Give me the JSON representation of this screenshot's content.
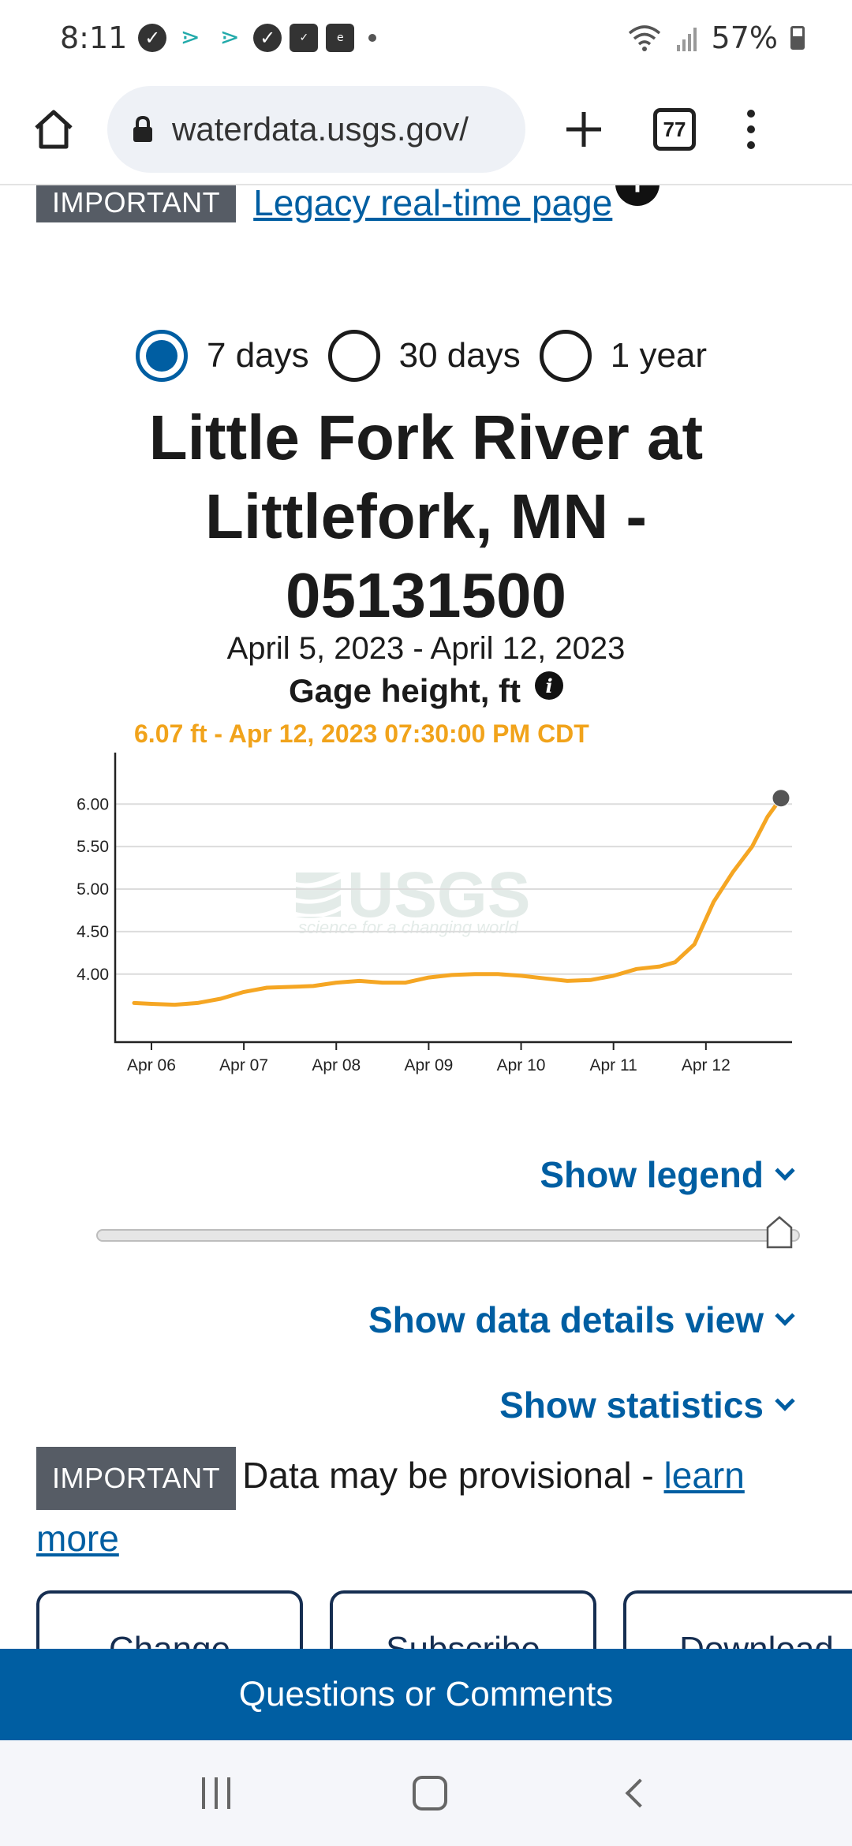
{
  "status_bar": {
    "time": "8:11",
    "battery": "57%"
  },
  "browser": {
    "url": "waterdata.usgs.gov/",
    "tab_count": "77"
  },
  "notice_top": {
    "tag": "IMPORTANT",
    "link": "Legacy real-time page "
  },
  "period_options": [
    {
      "label": "7 days",
      "selected": true
    },
    {
      "label": "30 days",
      "selected": false
    },
    {
      "label": "1 year",
      "selected": false
    }
  ],
  "site": {
    "title_line1": "Little Fork River at",
    "title_line2": "Littlefork, MN -",
    "title_line3": "05131500",
    "date_range": "April 5, 2023 - April 12, 2023",
    "parameter": "Gage height, ft",
    "current": "6.07 ft - Apr 12, 2023 07:30:00 PM CDT"
  },
  "chart_data": {
    "type": "line",
    "title": "",
    "xlabel": "",
    "ylabel": "",
    "x_tick_labels": [
      "Apr 06",
      "Apr 07",
      "Apr 08",
      "Apr 09",
      "Apr 10",
      "Apr 11",
      "Apr 12"
    ],
    "y_tick_labels": [
      "6.00",
      "5.50",
      "5.00",
      "4.50",
      "4.00"
    ],
    "y_ticks": [
      6.0,
      5.5,
      5.0,
      4.5,
      4.0
    ],
    "ylim": [
      3.2,
      6.55
    ],
    "x_range": [
      "2023-04-05T19:30",
      "2023-04-12T19:30"
    ],
    "grid": true,
    "color": "#f5a623",
    "watermark": {
      "name": "USGS",
      "tagline": "science for a changing world"
    },
    "series": [
      {
        "points": [
          [
            "2023-04-05T19:30",
            3.66
          ],
          [
            "2023-04-06T00:00",
            3.65
          ],
          [
            "2023-04-06T06:00",
            3.64
          ],
          [
            "2023-04-06T12:00",
            3.66
          ],
          [
            "2023-04-06T18:00",
            3.71
          ],
          [
            "2023-04-07T00:00",
            3.79
          ],
          [
            "2023-04-07T06:00",
            3.84
          ],
          [
            "2023-04-07T12:00",
            3.85
          ],
          [
            "2023-04-07T18:00",
            3.86
          ],
          [
            "2023-04-08T00:00",
            3.9
          ],
          [
            "2023-04-08T06:00",
            3.92
          ],
          [
            "2023-04-08T12:00",
            3.9
          ],
          [
            "2023-04-08T18:00",
            3.9
          ],
          [
            "2023-04-09T00:00",
            3.96
          ],
          [
            "2023-04-09T06:00",
            3.99
          ],
          [
            "2023-04-09T12:00",
            4.0
          ],
          [
            "2023-04-09T18:00",
            4.0
          ],
          [
            "2023-04-10T00:00",
            3.98
          ],
          [
            "2023-04-10T06:00",
            3.95
          ],
          [
            "2023-04-10T12:00",
            3.92
          ],
          [
            "2023-04-10T18:00",
            3.93
          ],
          [
            "2023-04-11T00:00",
            3.98
          ],
          [
            "2023-04-11T06:00",
            4.06
          ],
          [
            "2023-04-11T12:00",
            4.09
          ],
          [
            "2023-04-11T16:00",
            4.14
          ],
          [
            "2023-04-11T21:00",
            4.35
          ],
          [
            "2023-04-12T02:00",
            4.85
          ],
          [
            "2023-04-12T07:00",
            5.2
          ],
          [
            "2023-04-12T12:00",
            5.5
          ],
          [
            "2023-04-12T16:00",
            5.85
          ],
          [
            "2023-04-12T19:30",
            6.07
          ]
        ]
      }
    ]
  },
  "controls": {
    "show_legend": "Show legend",
    "show_data_details": "Show data details view",
    "show_statistics": "Show statistics"
  },
  "notice_bottom": {
    "tag": "IMPORTANT",
    "text": "Data may be provisional - ",
    "link": "learn more"
  },
  "actions": [
    "Change",
    "Subscribe",
    "Download"
  ],
  "feedback": "Questions or Comments"
}
